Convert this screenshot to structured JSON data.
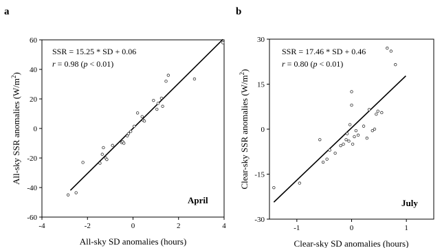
{
  "chart_data": [
    {
      "type": "scatter",
      "panel_label": "a",
      "title": "",
      "xlabel": "All-sky SD anomalies (hours)",
      "ylabel": "All-sky SSR anomalies (W/m2)",
      "xlim": [
        -4,
        4
      ],
      "ylim": [
        -60,
        60
      ],
      "xticks": [
        -4,
        -2,
        0,
        2,
        4
      ],
      "yticks": [
        -60,
        -40,
        -20,
        0,
        20,
        40,
        60
      ],
      "equation": "SSR = 15.25 * SD + 0.06",
      "r_text": "r = 0.98 (p < 0.01)",
      "month": "April",
      "grid": false,
      "fit": {
        "slope": 15.25,
        "intercept": 0.06,
        "x_range": [
          -2.75,
          3.95
        ]
      },
      "series": [
        {
          "points": [
            [
              -2.85,
              -45
            ],
            [
              -2.5,
              -43.5
            ],
            [
              -2.2,
              -23
            ],
            [
              -1.45,
              -23.5
            ],
            [
              -1.35,
              -17.5
            ],
            [
              -1.3,
              -13
            ],
            [
              -1.2,
              -20
            ],
            [
              -1.15,
              -21
            ],
            [
              -0.9,
              -11.5
            ],
            [
              -0.5,
              -9.5
            ],
            [
              -0.45,
              -9
            ],
            [
              -0.4,
              -10
            ],
            [
              -0.25,
              -5
            ],
            [
              -0.2,
              -3.5
            ],
            [
              -0.1,
              -2
            ],
            [
              0.05,
              1.5
            ],
            [
              0.2,
              10.5
            ],
            [
              0.4,
              8
            ],
            [
              0.45,
              5.5
            ],
            [
              0.5,
              5
            ],
            [
              0.9,
              19
            ],
            [
              1.05,
              13
            ],
            [
              1.1,
              17
            ],
            [
              1.25,
              20.5
            ],
            [
              1.3,
              15
            ],
            [
              1.45,
              32
            ],
            [
              1.55,
              36
            ],
            [
              2.7,
              33.5
            ],
            [
              3.95,
              58
            ]
          ]
        }
      ]
    },
    {
      "type": "scatter",
      "panel_label": "b",
      "title": "",
      "xlabel": "Clear-sky SD anomalies (hours)",
      "ylabel": "Clear-sky SSR anomalies (W/m2)",
      "xlim": [
        -1.5,
        1.5
      ],
      "ylim": [
        -30,
        30
      ],
      "xticks": [
        -1,
        0,
        1
      ],
      "yticks": [
        -30,
        -15,
        0,
        15,
        30
      ],
      "equation": "SSR = 17.46 * SD + 0.46",
      "r_text": "r = 0.80 (p < 0.01)",
      "month": "July",
      "grid": false,
      "fit": {
        "slope": 17.46,
        "intercept": 0.46,
        "x_range": [
          -1.42,
          0.99
        ]
      },
      "series": [
        {
          "points": [
            [
              -1.42,
              -19.5
            ],
            [
              -0.95,
              -18
            ],
            [
              -0.58,
              -3.5
            ],
            [
              -0.52,
              -11
            ],
            [
              -0.45,
              -10
            ],
            [
              -0.4,
              -7
            ],
            [
              -0.3,
              -8
            ],
            [
              -0.2,
              -5.5
            ],
            [
              -0.15,
              -5
            ],
            [
              -0.1,
              -3.5
            ],
            [
              -0.08,
              -1.5
            ],
            [
              -0.05,
              -4
            ],
            [
              -0.03,
              1.5
            ],
            [
              0.0,
              12.5
            ],
            [
              0.0,
              8
            ],
            [
              0.02,
              -5
            ],
            [
              0.05,
              -2.5
            ],
            [
              0.08,
              -0.5
            ],
            [
              0.12,
              -2
            ],
            [
              0.22,
              1
            ],
            [
              0.28,
              -3
            ],
            [
              0.32,
              6.5
            ],
            [
              0.38,
              -0.5
            ],
            [
              0.42,
              0
            ],
            [
              0.45,
              5
            ],
            [
              0.48,
              6
            ],
            [
              0.55,
              5.5
            ],
            [
              0.65,
              27
            ],
            [
              0.72,
              26
            ],
            [
              0.8,
              21.5
            ]
          ]
        }
      ]
    }
  ]
}
